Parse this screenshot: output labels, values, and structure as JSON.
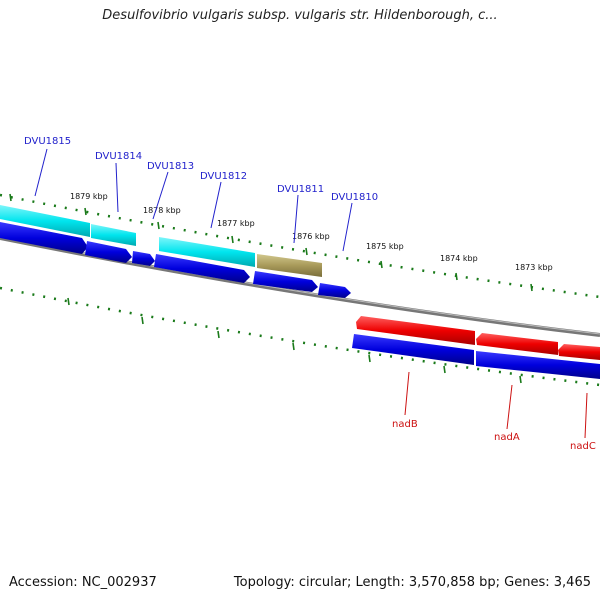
{
  "title": "Desulfovibrio vulgaris subsp. vulgaris str. Hildenborough, c...",
  "footer": {
    "accession": "Accession: NC_002937",
    "summary": "Topology: circular; Length: 3,570,858 bp; Genes: 3,465"
  },
  "kbp_ticks": [
    "1879 kbp",
    "1878 kbp",
    "1877 kbp",
    "1876 kbp",
    "1875 kbp",
    "1874 kbp",
    "1873 kbp"
  ],
  "genes_top": [
    "DVU1815",
    "DVU1814",
    "DVU1813",
    "DVU1812",
    "DVU1811",
    "DVU1810"
  ],
  "genes_bottom": [
    "nadB",
    "nadA",
    "nadC"
  ],
  "colors": {
    "cyan": "#00e5ee",
    "blue": "#0000dd",
    "olive": "#a89a5a",
    "red": "#ee0000",
    "backbone": "#777777",
    "tick": "#1a7a1a",
    "label_blue": "#2222cc",
    "label_red": "#cc1111"
  }
}
